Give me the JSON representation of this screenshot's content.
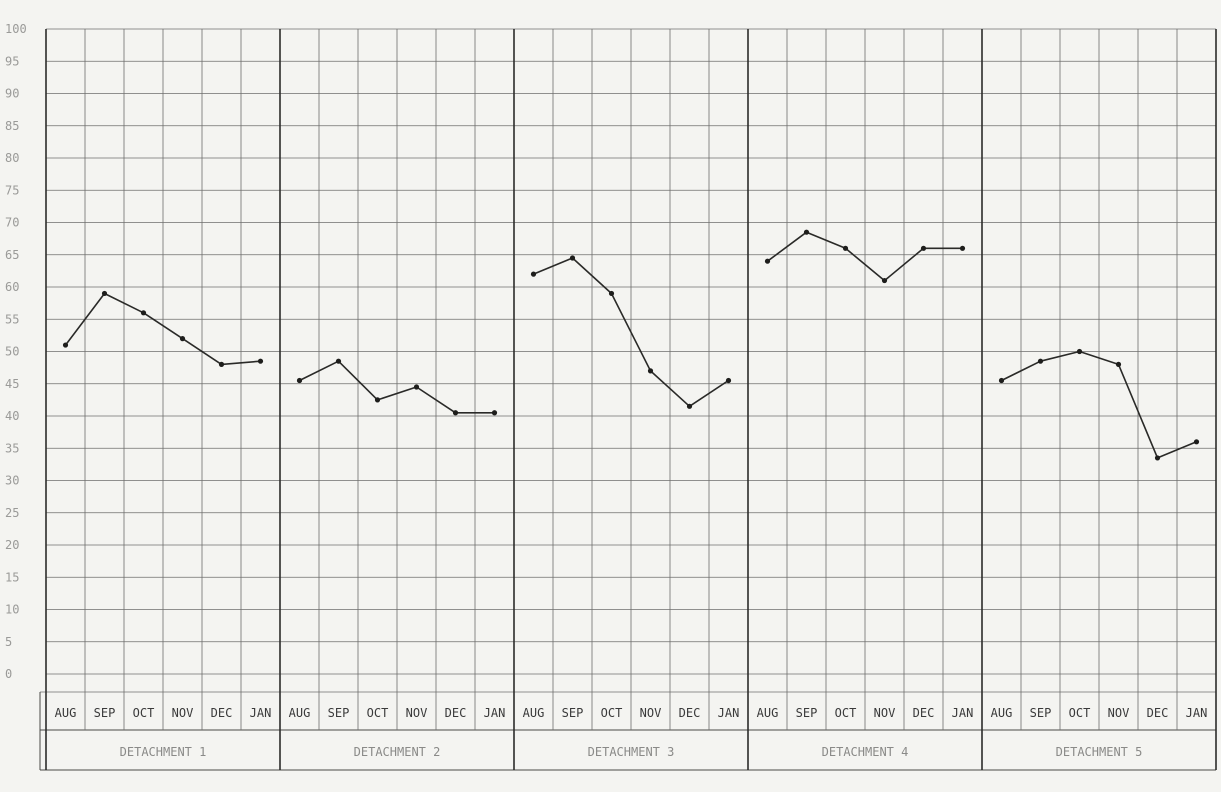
{
  "chart_data": {
    "type": "line",
    "title": "",
    "xlabel": "",
    "ylabel": "",
    "ylim": [
      0,
      100
    ],
    "yticks": [
      "100",
      "95",
      "90",
      "85",
      "80",
      "75",
      "70",
      "65",
      "60",
      "55",
      "50",
      "45",
      "40",
      "35",
      "30",
      "25",
      "20",
      "15",
      "10",
      "5",
      "0"
    ],
    "grid": true,
    "panels": [
      {
        "name": "DETACHMENT 1",
        "months": [
          "AUG",
          "SEP",
          "OCT",
          "NOV",
          "DEC",
          "JAN"
        ],
        "values": [
          51,
          59,
          56,
          52,
          48,
          48.5
        ]
      },
      {
        "name": "DETACHMENT 2",
        "months": [
          "AUG",
          "SEP",
          "OCT",
          "NOV",
          "DEC",
          "JAN"
        ],
        "values": [
          45.5,
          48.5,
          42.5,
          44.5,
          40.5,
          40.5
        ]
      },
      {
        "name": "DETACHMENT 3",
        "months": [
          "AUG",
          "SEP",
          "OCT",
          "NOV",
          "DEC",
          "JAN"
        ],
        "values": [
          62,
          64.5,
          59,
          47,
          41.5,
          45.5
        ]
      },
      {
        "name": "DETACHMENT 4",
        "months": [
          "AUG",
          "SEP",
          "OCT",
          "NOV",
          "DEC",
          "JAN"
        ],
        "values": [
          64,
          68.5,
          66,
          61,
          66,
          66
        ]
      },
      {
        "name": "DETACHMENT 5",
        "months": [
          "AUG",
          "SEP",
          "OCT",
          "NOV",
          "DEC",
          "JAN"
        ],
        "values": [
          45.5,
          48.5,
          50,
          48,
          33.5,
          36
        ]
      }
    ]
  }
}
